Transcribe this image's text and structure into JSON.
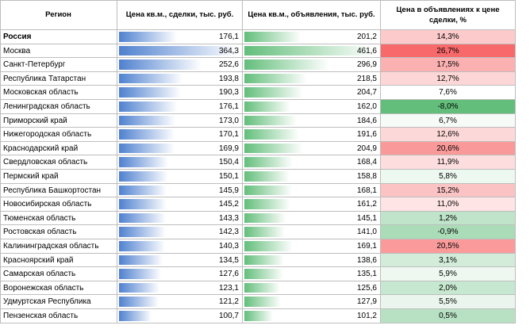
{
  "table": {
    "headers": [
      "Регион",
      "Цена кв.м., сделки, тыс. руб.",
      "Цена кв.м., объявления, тыс. руб.",
      "Цена в объявлениях к цене сделки, %"
    ],
    "rows": [
      {
        "region": "Россия",
        "deal": {
          "value": 176.1,
          "label": "176,1"
        },
        "listing": {
          "value": 201.2,
          "label": "201,2"
        },
        "ratio": {
          "value": 14.3,
          "label": "14,3%"
        }
      },
      {
        "region": "Москва",
        "deal": {
          "value": 364.3,
          "label": "364,3"
        },
        "listing": {
          "value": 461.6,
          "label": "461,6"
        },
        "ratio": {
          "value": 26.7,
          "label": "26,7%"
        }
      },
      {
        "region": "Санкт-Петербург",
        "deal": {
          "value": 252.6,
          "label": "252,6"
        },
        "listing": {
          "value": 296.9,
          "label": "296,9"
        },
        "ratio": {
          "value": 17.5,
          "label": "17,5%"
        }
      },
      {
        "region": "Республика Татарстан",
        "deal": {
          "value": 193.8,
          "label": "193,8"
        },
        "listing": {
          "value": 218.5,
          "label": "218,5"
        },
        "ratio": {
          "value": 12.7,
          "label": "12,7%"
        }
      },
      {
        "region": "Московская область",
        "deal": {
          "value": 190.3,
          "label": "190,3"
        },
        "listing": {
          "value": 204.7,
          "label": "204,7"
        },
        "ratio": {
          "value": 7.6,
          "label": "7,6%"
        }
      },
      {
        "region": "Ленинградская область",
        "deal": {
          "value": 176.1,
          "label": "176,1"
        },
        "listing": {
          "value": 162.0,
          "label": "162,0"
        },
        "ratio": {
          "value": -8.0,
          "label": "-8,0%"
        }
      },
      {
        "region": "Приморский край",
        "deal": {
          "value": 173.0,
          "label": "173,0"
        },
        "listing": {
          "value": 184.6,
          "label": "184,6"
        },
        "ratio": {
          "value": 6.7,
          "label": "6,7%"
        }
      },
      {
        "region": "Нижегородская область",
        "deal": {
          "value": 170.1,
          "label": "170,1"
        },
        "listing": {
          "value": 191.6,
          "label": "191,6"
        },
        "ratio": {
          "value": 12.6,
          "label": "12,6%"
        }
      },
      {
        "region": "Краснодарский край",
        "deal": {
          "value": 169.9,
          "label": "169,9"
        },
        "listing": {
          "value": 204.9,
          "label": "204,9"
        },
        "ratio": {
          "value": 20.6,
          "label": "20,6%"
        }
      },
      {
        "region": "Свердловская область",
        "deal": {
          "value": 150.4,
          "label": "150,4"
        },
        "listing": {
          "value": 168.4,
          "label": "168,4"
        },
        "ratio": {
          "value": 11.9,
          "label": "11,9%"
        }
      },
      {
        "region": "Пермский край",
        "deal": {
          "value": 150.1,
          "label": "150,1"
        },
        "listing": {
          "value": 158.8,
          "label": "158,8"
        },
        "ratio": {
          "value": 5.8,
          "label": "5,8%"
        }
      },
      {
        "region": "Республика Башкортостан",
        "deal": {
          "value": 145.9,
          "label": "145,9"
        },
        "listing": {
          "value": 168.1,
          "label": "168,1"
        },
        "ratio": {
          "value": 15.2,
          "label": "15,2%"
        }
      },
      {
        "region": "Новосибирская область",
        "deal": {
          "value": 145.2,
          "label": "145,2"
        },
        "listing": {
          "value": 161.2,
          "label": "161,2"
        },
        "ratio": {
          "value": 11.0,
          "label": "11,0%"
        }
      },
      {
        "region": "Тюменская область",
        "deal": {
          "value": 143.3,
          "label": "143,3"
        },
        "listing": {
          "value": 145.1,
          "label": "145,1"
        },
        "ratio": {
          "value": 1.2,
          "label": "1,2%"
        }
      },
      {
        "region": "Ростовская область",
        "deal": {
          "value": 142.3,
          "label": "142,3"
        },
        "listing": {
          "value": 141.0,
          "label": "141,0"
        },
        "ratio": {
          "value": -0.9,
          "label": "-0,9%"
        }
      },
      {
        "region": "Калининградская область",
        "deal": {
          "value": 140.3,
          "label": "140,3"
        },
        "listing": {
          "value": 169.1,
          "label": "169,1"
        },
        "ratio": {
          "value": 20.5,
          "label": "20,5%"
        }
      },
      {
        "region": "Красноярский край",
        "deal": {
          "value": 134.5,
          "label": "134,5"
        },
        "listing": {
          "value": 138.6,
          "label": "138,6"
        },
        "ratio": {
          "value": 3.1,
          "label": "3,1%"
        }
      },
      {
        "region": "Самарская область",
        "deal": {
          "value": 127.6,
          "label": "127,6"
        },
        "listing": {
          "value": 135.1,
          "label": "135,1"
        },
        "ratio": {
          "value": 5.9,
          "label": "5,9%"
        }
      },
      {
        "region": "Воронежская область",
        "deal": {
          "value": 123.1,
          "label": "123,1"
        },
        "listing": {
          "value": 125.6,
          "label": "125,6"
        },
        "ratio": {
          "value": 2.0,
          "label": "2,0%"
        }
      },
      {
        "region": "Удмуртская Республика",
        "deal": {
          "value": 121.2,
          "label": "121,2"
        },
        "listing": {
          "value": 127.9,
          "label": "127,9"
        },
        "ratio": {
          "value": 5.5,
          "label": "5,5%"
        }
      },
      {
        "region": "Пензенская область",
        "deal": {
          "value": 100.7,
          "label": "100,7"
        },
        "listing": {
          "value": 101.2,
          "label": "101,2"
        },
        "ratio": {
          "value": 0.5,
          "label": "0,5%"
        }
      }
    ],
    "deal_bar_color": "#4f81cf",
    "listing_bar_color": "#63be7b",
    "ratio_colors": {
      "low": "#63be7b",
      "mid": "#ffffff",
      "high": "#f8696b"
    }
  }
}
